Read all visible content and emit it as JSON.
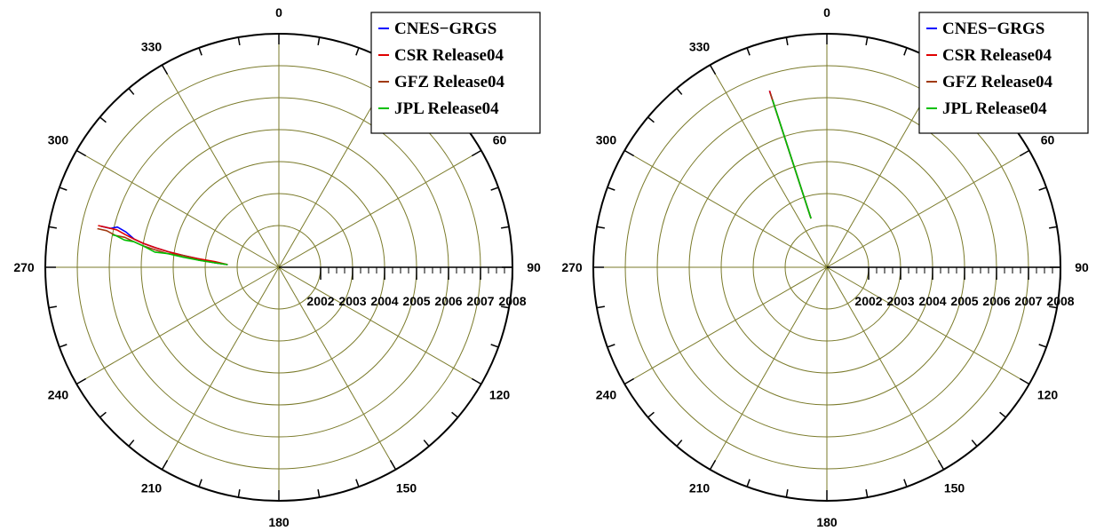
{
  "colors": {
    "grid": "#7a7a2a",
    "outline": "#000000",
    "series": {
      "CNES-GRGS": "#0000ff",
      "CSR Release04": "#e00000",
      "GFZ Release04": "#a03a10",
      "JPL  Release04": "#00c000"
    }
  },
  "chart_data": [
    {
      "type": "polar-line",
      "angle_ticks_labeled": [
        "0",
        "60",
        "90",
        "120",
        "150",
        "180",
        "210",
        "240",
        "270",
        "300",
        "330"
      ],
      "angle_direction": "clockwise-from-top",
      "radial_axis": {
        "label_years": [
          "2002",
          "2003",
          "2004",
          "2005",
          "2006",
          "2007",
          "2008"
        ],
        "range": [
          2002,
          2008
        ]
      },
      "legend": {
        "placement": "top-right",
        "entries": [
          "CNES−GRGS",
          "CSR Release04",
          "GFZ Release04",
          "JPL  Release04"
        ]
      },
      "series": [
        {
          "name": "CNES-GRGS",
          "points": [
            [
              2002.3,
              273
            ],
            [
              2002.7,
              274
            ],
            [
              2003.2,
              276
            ],
            [
              2003.7,
              277
            ],
            [
              2004.2,
              278
            ],
            [
              2004.6,
              279
            ],
            [
              2005.0,
              280
            ],
            [
              2005.3,
              281
            ],
            [
              2005.6,
              283
            ],
            [
              2005.9,
              284
            ],
            [
              2006.1,
              283
            ],
            [
              2006.4,
              283
            ]
          ]
        },
        {
          "name": "CSR Release04",
          "points": [
            [
              2002.3,
              273
            ],
            [
              2002.7,
              275
            ],
            [
              2003.2,
              276
            ],
            [
              2003.7,
              277
            ],
            [
              2004.2,
              278
            ],
            [
              2004.6,
              279
            ],
            [
              2005.0,
              280
            ],
            [
              2005.3,
              281
            ],
            [
              2005.6,
              282
            ],
            [
              2005.9,
              283
            ],
            [
              2006.2,
              283
            ],
            [
              2006.5,
              283
            ]
          ]
        },
        {
          "name": "GFZ Release04",
          "points": [
            [
              2002.3,
              273
            ],
            [
              2002.7,
              274
            ],
            [
              2003.2,
              275
            ],
            [
              2003.7,
              277
            ],
            [
              2004.2,
              277
            ],
            [
              2004.6,
              278
            ],
            [
              2005.0,
              279
            ],
            [
              2005.3,
              280
            ],
            [
              2005.6,
              281
            ],
            [
              2005.9,
              281
            ],
            [
              2006.2,
              282
            ],
            [
              2006.5,
              282
            ]
          ]
        },
        {
          "name": "JPL  Release04",
          "points": [
            [
              2002.3,
              273
            ],
            [
              2002.7,
              274
            ],
            [
              2003.2,
              275
            ],
            [
              2003.7,
              276
            ],
            [
              2004.2,
              277
            ],
            [
              2004.6,
              277
            ],
            [
              2005.0,
              279
            ],
            [
              2005.3,
              280
            ],
            [
              2005.6,
              280
            ],
            [
              2005.9,
              281
            ],
            [
              2006.0,
              281
            ]
          ]
        }
      ]
    },
    {
      "type": "polar-line",
      "angle_ticks_labeled": [
        "0",
        "60",
        "90",
        "120",
        "150",
        "180",
        "210",
        "240",
        "270",
        "300",
        "330"
      ],
      "angle_direction": "clockwise-from-top",
      "radial_axis": {
        "label_years": [
          "2002",
          "2003",
          "2004",
          "2005",
          "2006",
          "2007",
          "2008"
        ],
        "range": [
          2002,
          2008
        ]
      },
      "legend": {
        "placement": "top-right",
        "entries": [
          "CNES−GRGS",
          "CSR Release04",
          "GFZ Release04",
          "JPL  Release04"
        ]
      },
      "series": [
        {
          "name": "CNES-GRGS",
          "points": [
            [
              2002.3,
              342
            ],
            [
              2006.5,
              342
            ]
          ]
        },
        {
          "name": "CSR Release04",
          "points": [
            [
              2002.3,
              342
            ],
            [
              2006.5,
              342
            ]
          ]
        },
        {
          "name": "GFZ Release04",
          "points": [
            [
              2002.3,
              342
            ],
            [
              2006.4,
              342
            ]
          ]
        },
        {
          "name": "JPL  Release04",
          "points": [
            [
              2002.3,
              342
            ],
            [
              2006.2,
              342
            ]
          ]
        }
      ]
    }
  ]
}
